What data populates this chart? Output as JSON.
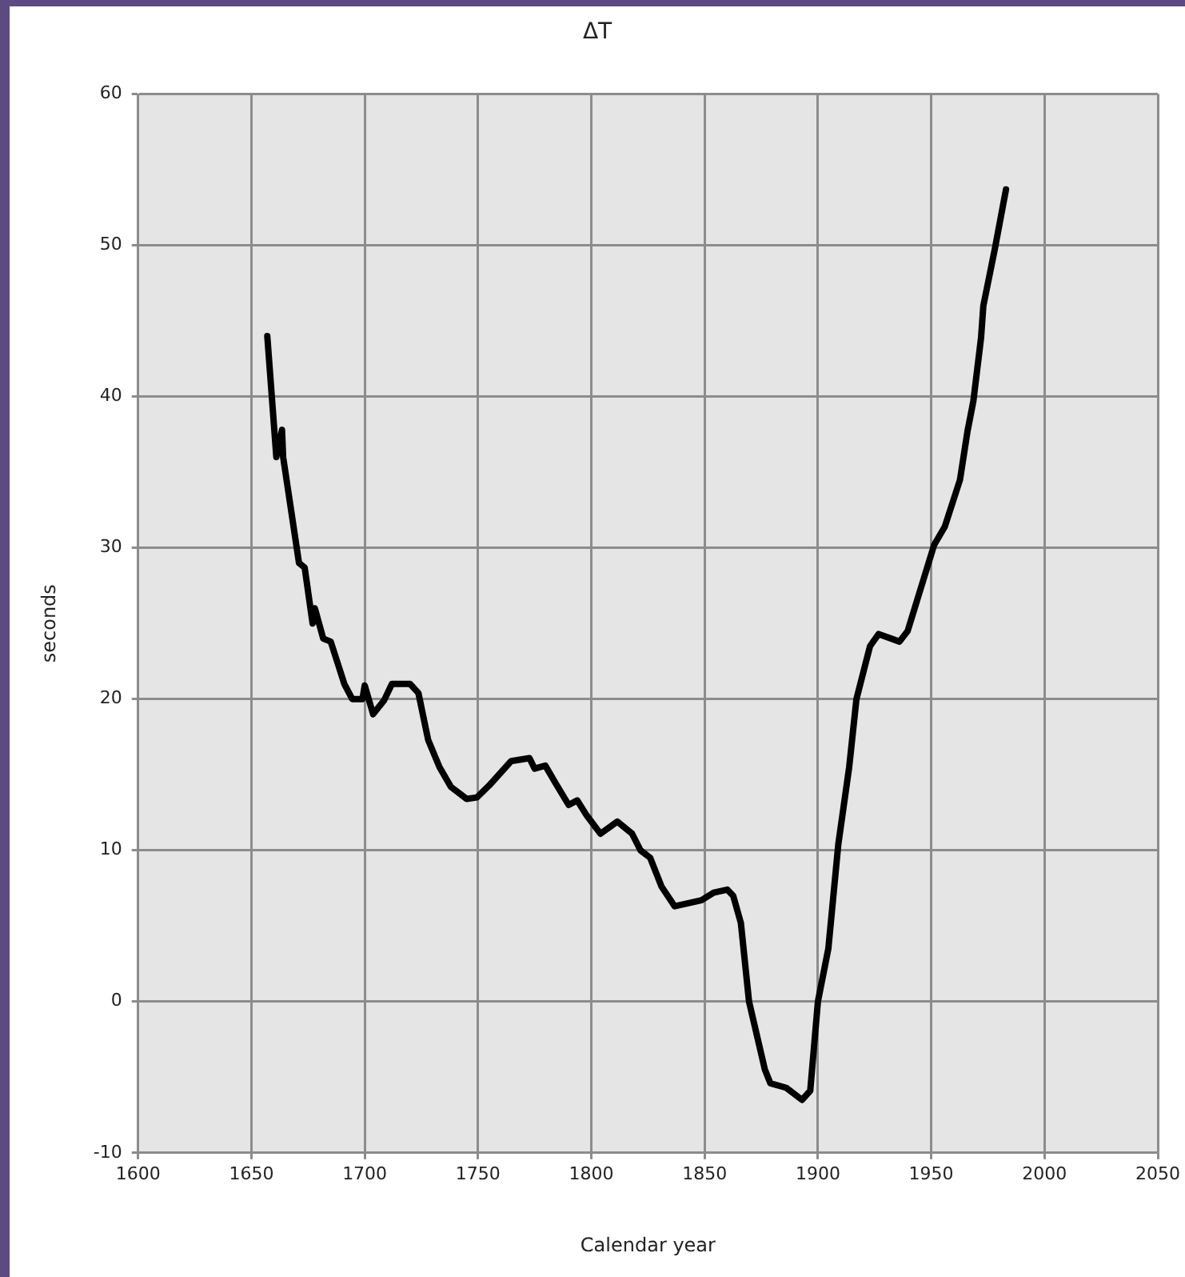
{
  "chart_data": {
    "type": "line",
    "title": "ΔT",
    "xlabel": "Calendar year",
    "ylabel": "seconds",
    "xlim": [
      1600,
      2050
    ],
    "xticks": [
      1600,
      1650,
      1700,
      1750,
      1800,
      1850,
      1900,
      1950,
      2000,
      2050
    ],
    "ylim": [
      -10,
      60
    ],
    "yticks": [
      -10,
      0,
      10,
      20,
      30,
      40,
      50,
      60
    ],
    "grid": true,
    "legend": false,
    "marker": "none",
    "line_style": "solid",
    "series": [
      {
        "color": "#000000",
        "x": [
          1657,
          1659.5,
          1661,
          1663.5,
          1664,
          1671,
          1673.5,
          1677,
          1678,
          1681.7,
          1685,
          1691,
          1694.5,
          1699,
          1700,
          1703.7,
          1708.5,
          1712,
          1720,
          1723.7,
          1728,
          1733,
          1738,
          1745,
          1749.5,
          1755,
          1764.6,
          1772.7,
          1775,
          1779.7,
          1784,
          1790,
          1793.8,
          1798,
          1804,
          1811.5,
          1818,
          1821.7,
          1826,
          1831,
          1836.8,
          1848.6,
          1854,
          1860,
          1862.6,
          1866,
          1869.6,
          1876.6,
          1879,
          1886,
          1893,
          1896.6,
          1900,
          1904.6,
          1909,
          1913.8,
          1917,
          1923,
          1926.8,
          1936,
          1939.6,
          1951.3,
          1956,
          1962.7,
          1966,
          1968.6,
          1972,
          1973,
          1978,
          1983
        ],
        "values": [
          44,
          39,
          36,
          37.8,
          36,
          29,
          28.7,
          25,
          26,
          24,
          23.8,
          21,
          20,
          20,
          20.9,
          19,
          19.9,
          21,
          21,
          20.4,
          17.3,
          15.5,
          14.2,
          13.4,
          13.5,
          14.3,
          15.9,
          16.1,
          15.4,
          15.6,
          14.5,
          13,
          13.3,
          12.3,
          11.1,
          11.9,
          11.1,
          10,
          9.5,
          7.6,
          6.3,
          6.7,
          7.2,
          7.4,
          7,
          5.2,
          0,
          -4.5,
          -5.4,
          -5.7,
          -6.5,
          -5.9,
          0,
          3.5,
          10.4,
          15.5,
          20,
          23.5,
          24.3,
          23.8,
          24.5,
          30.2,
          31.4,
          34.5,
          37.7,
          39.7,
          43.9,
          46,
          49.7,
          53.7
        ]
      }
    ]
  }
}
